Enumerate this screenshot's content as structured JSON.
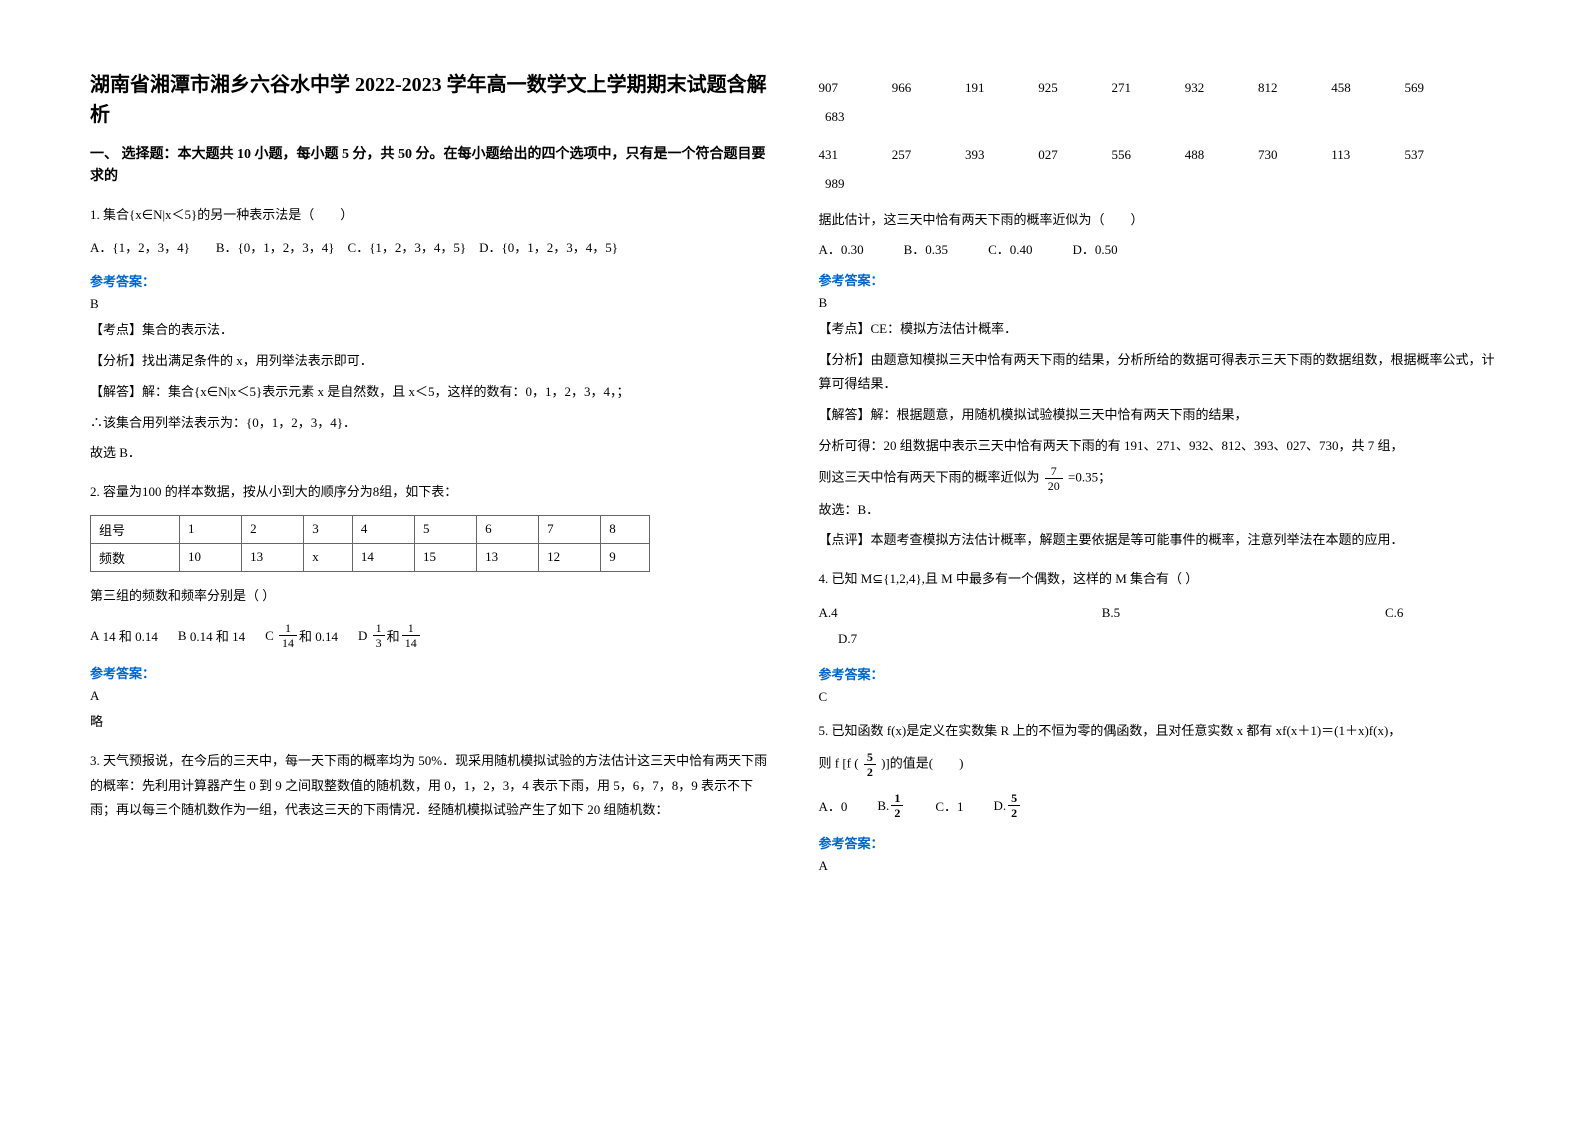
{
  "title": "湖南省湘潭市湘乡六谷水中学 2022-2023 学年高一数学文上学期期末试题含解析",
  "section1": "一、 选择题：本大题共 10 小题，每小题 5 分，共 50 分。在每小题给出的四个选项中，只有是一个符合题目要求的",
  "q1": {
    "stem": "1. 集合{x∈N|x＜5}的另一种表示法是（　　）",
    "options": "A．{1，2，3，4}　　B．{0，1，2，3，4}　C．{1，2，3，4，5}　D．{0，1，2，3，4，5}",
    "answer_label": "参考答案：",
    "letter": "B",
    "point": "【考点】集合的表示法．",
    "analysis": "【分析】找出满足条件的 x，用列举法表示即可．",
    "solve1": "【解答】解：集合{x∈N|x＜5}表示元素 x 是自然数，且 x＜5，这样的数有：0，1，2，3，4，；",
    "solve2": "∴该集合用列举法表示为：{0，1，2，3，4}．",
    "solve3": "故选 B．"
  },
  "q2": {
    "stem": "2. 容量为100 的样本数据，按从小到大的顺序分为8组，如下表：",
    "table": {
      "headers": [
        "组号",
        "1",
        "2",
        "3",
        "4",
        "5",
        "6",
        "7",
        "8"
      ],
      "row_label": "频数",
      "row": [
        "10",
        "13",
        "x",
        "14",
        "15",
        "13",
        "12",
        "9"
      ]
    },
    "sub": "第三组的频数和频率分别是（  ）",
    "optA_prefix": "A",
    "optA_text": "14 和 0.14",
    "optB_prefix": "B",
    "optB_text": "0.14 和 14",
    "optC_prefix": "C",
    "optC_num": "1",
    "optC_den": "14",
    "optC_suffix": "和 0.14",
    "optD_prefix": "D",
    "optD_num1": "1",
    "optD_den1": "3",
    "optD_mid": "和",
    "optD_num2": "1",
    "optD_den2": "14",
    "answer_label": "参考答案：",
    "letter": "A",
    "brief": "略"
  },
  "q3": {
    "stem": "3. 天气预报说，在今后的三天中，每一天下雨的概率均为 50%．现采用随机模拟试验的方法估计这三天中恰有两天下雨的概率：先利用计算器产生 0 到 9 之间取整数值的随机数，用 0，1，2，3，4 表示下雨，用 5，6，7，8，9 表示不下雨；再以每三个随机数作为一组，代表这三天的下雨情况．经随机模拟试验产生了如下 20 组随机数：",
    "numbers_row1": [
      "907",
      "966",
      "191",
      "925",
      "271",
      "932",
      "812",
      "458",
      "569",
      "683"
    ],
    "numbers_row2": [
      "431",
      "257",
      "393",
      "027",
      "556",
      "488",
      "730",
      "113",
      "537",
      "989"
    ],
    "sub": "据此估计，这三天中恰有两天下雨的概率近似为（　　）",
    "optA": "A．0.30",
    "optB": "B．0.35",
    "optC": "C．0.40",
    "optD": "D．0.50",
    "answer_label": "参考答案：",
    "letter": "B",
    "point": "【考点】CE：模拟方法估计概率．",
    "analysis": "【分析】由题意知模拟三天中恰有两天下雨的结果，分析所给的数据可得表示三天下雨的数据组数，根据概率公式，计算可得结果．",
    "solve1": "【解答】解：根据题意，用随机模拟试验模拟三天中恰有两天下雨的结果，",
    "solve2": "分析可得：20 组数据中表示三天中恰有两天下雨的有 191、271、932、812、393、027、730，共 7 组，",
    "frac_label_pre": "则这三天中恰有两天下雨的概率近似为",
    "frac_num": "7",
    "frac_den": "20",
    "frac_label_post": "=0.35；",
    "solve4": "故选：B．",
    "comment": "【点评】本题考查模拟方法估计概率，解题主要依据是等可能事件的概率，注意列举法在本题的应用．"
  },
  "q4": {
    "stem": "4. 已知 M⊆{1,2,4},且 M 中最多有一个偶数，这样的 M 集合有（        ）",
    "optA": "A.4",
    "optB": "B.5",
    "optC": "C.6",
    "optD": "D.7",
    "answer_label": "参考答案：",
    "letter": "C"
  },
  "q5": {
    "stem": "5. 已知函数 f(x)是定义在实数集 R 上的不恒为零的偶函数，且对任意实数 x 都有 xf(x＋1)＝(1＋x)f(x)，",
    "sub_pre": "则 f [f (",
    "sub_num": "5",
    "sub_den": "2",
    "sub_post": " )]的值是(　　)",
    "optA": "A．0",
    "optB_prefix": "B.",
    "optB_num": "1",
    "optB_den": "2",
    "optC": "C．1",
    "optD_prefix": "D.",
    "optD_num": "5",
    "optD_den": "2",
    "answer_label": "参考答案：",
    "letter": "A"
  }
}
